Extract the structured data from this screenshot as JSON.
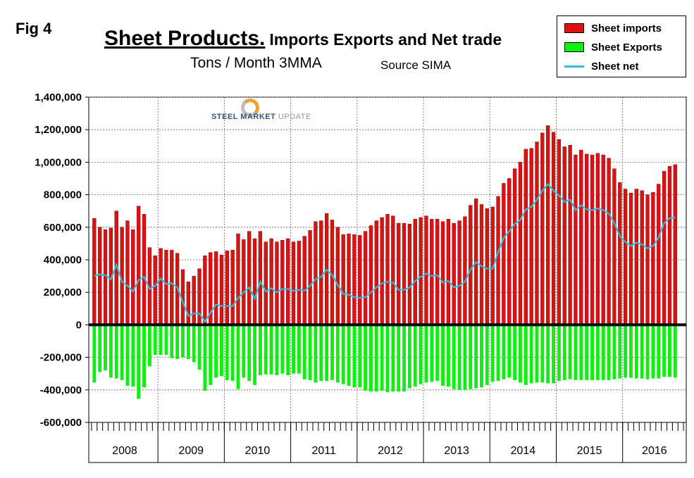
{
  "fig_label": "Fig 4",
  "chart_data": {
    "type": "bar",
    "title_main": "Sheet Products.",
    "title_rest": "Imports Exports and Net trade",
    "subtitle": "Tons / Month 3MMA",
    "source": "Source SIMA",
    "ylim": [
      -600000,
      1400000
    ],
    "yticks": [
      1400000,
      1200000,
      1000000,
      800000,
      600000,
      400000,
      200000,
      0,
      -200000,
      -400000,
      -600000
    ],
    "ytick_labels": [
      "1,400,000",
      "1,200,000",
      "1,000,000",
      "800,000",
      "600,000",
      "400,000",
      "200,000",
      "0",
      "-200,000",
      "-400,000",
      "-600,000"
    ],
    "years": [
      "2008",
      "2009",
      "2010",
      "2011",
      "2012",
      "2013",
      "2014",
      "2015",
      "2016"
    ],
    "series": [
      {
        "name": "Sheet imports",
        "color": "#dd1111",
        "values": [
          655000,
          600000,
          585000,
          595000,
          700000,
          600000,
          640000,
          585000,
          730000,
          680000,
          475000,
          425000,
          470000,
          460000,
          460000,
          440000,
          340000,
          265000,
          300000,
          345000,
          425000,
          445000,
          450000,
          430000,
          455000,
          460000,
          560000,
          525000,
          575000,
          530000,
          575000,
          510000,
          530000,
          510000,
          520000,
          530000,
          510000,
          515000,
          545000,
          580000,
          635000,
          640000,
          685000,
          645000,
          600000,
          555000,
          560000,
          555000,
          550000,
          575000,
          610000,
          640000,
          660000,
          680000,
          670000,
          625000,
          625000,
          620000,
          650000,
          660000,
          670000,
          650000,
          650000,
          635000,
          650000,
          625000,
          640000,
          665000,
          735000,
          775000,
          740000,
          715000,
          725000,
          790000,
          870000,
          900000,
          960000,
          1000000,
          1080000,
          1085000,
          1125000,
          1180000,
          1225000,
          1185000,
          1140000,
          1095000,
          1105000,
          1045000,
          1075000,
          1050000,
          1045000,
          1055000,
          1045000,
          1025000,
          960000,
          875000,
          835000,
          810000,
          835000,
          825000,
          800000,
          815000,
          865000,
          945000,
          975000,
          985000
        ]
      },
      {
        "name": "Sheet Exports",
        "color": "#11ee11",
        "values": [
          -355000,
          -290000,
          -280000,
          -325000,
          -330000,
          -340000,
          -375000,
          -380000,
          -455000,
          -385000,
          -255000,
          -185000,
          -185000,
          -185000,
          -205000,
          -210000,
          -200000,
          -210000,
          -230000,
          -275000,
          -405000,
          -370000,
          -325000,
          -315000,
          -340000,
          -345000,
          -395000,
          -325000,
          -345000,
          -370000,
          -310000,
          -305000,
          -305000,
          -310000,
          -300000,
          -310000,
          -300000,
          -300000,
          -335000,
          -340000,
          -355000,
          -345000,
          -345000,
          -340000,
          -355000,
          -365000,
          -375000,
          -385000,
          -385000,
          -405000,
          -410000,
          -410000,
          -405000,
          -415000,
          -410000,
          -410000,
          -410000,
          -390000,
          -380000,
          -365000,
          -355000,
          -350000,
          -345000,
          -375000,
          -380000,
          -395000,
          -400000,
          -400000,
          -395000,
          -390000,
          -385000,
          -370000,
          -350000,
          -345000,
          -335000,
          -325000,
          -340000,
          -355000,
          -370000,
          -360000,
          -355000,
          -355000,
          -360000,
          -360000,
          -345000,
          -340000,
          -335000,
          -340000,
          -340000,
          -340000,
          -340000,
          -340000,
          -340000,
          -340000,
          -335000,
          -330000,
          -325000,
          -325000,
          -330000,
          -330000,
          -335000,
          -330000,
          -330000,
          -320000,
          -320000,
          -325000
        ]
      },
      {
        "name": "Sheet net",
        "color": "#33bbdd",
        "values": [
          300000,
          310000,
          305000,
          280000,
          370000,
          265000,
          240000,
          205000,
          275000,
          295000,
          220000,
          240000,
          285000,
          250000,
          255000,
          230000,
          140000,
          55000,
          70000,
          70000,
          20000,
          75000,
          125000,
          115000,
          115000,
          115000,
          165000,
          200000,
          230000,
          160000,
          265000,
          205000,
          225000,
          200000,
          220000,
          220000,
          210000,
          215000,
          210000,
          240000,
          280000,
          295000,
          340000,
          305000,
          245000,
          190000,
          185000,
          170000,
          165000,
          170000,
          200000,
          230000,
          255000,
          265000,
          260000,
          215000,
          215000,
          230000,
          270000,
          295000,
          315000,
          300000,
          305000,
          260000,
          270000,
          230000,
          240000,
          265000,
          340000,
          385000,
          360000,
          345000,
          345000,
          445000,
          535000,
          575000,
          620000,
          645000,
          710000,
          725000,
          770000,
          825000,
          865000,
          825000,
          795000,
          755000,
          770000,
          705000,
          735000,
          710000,
          705000,
          715000,
          705000,
          685000,
          625000,
          545000,
          510000,
          485000,
          505000,
          495000,
          470000,
          485000,
          535000,
          625000,
          655000,
          660000
        ]
      }
    ]
  }
}
